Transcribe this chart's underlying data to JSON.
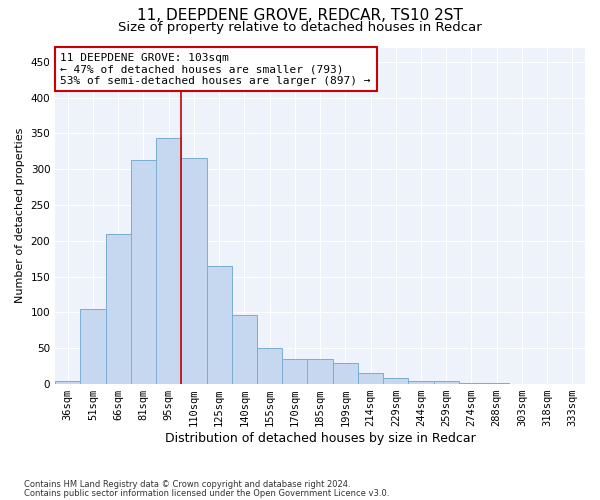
{
  "title1": "11, DEEPDENE GROVE, REDCAR, TS10 2ST",
  "title2": "Size of property relative to detached houses in Redcar",
  "xlabel": "Distribution of detached houses by size in Redcar",
  "ylabel": "Number of detached properties",
  "categories": [
    "36sqm",
    "51sqm",
    "66sqm",
    "81sqm",
    "95sqm",
    "110sqm",
    "125sqm",
    "140sqm",
    "155sqm",
    "170sqm",
    "185sqm",
    "199sqm",
    "214sqm",
    "229sqm",
    "244sqm",
    "259sqm",
    "274sqm",
    "288sqm",
    "303sqm",
    "318sqm",
    "333sqm"
  ],
  "values": [
    5,
    105,
    210,
    313,
    344,
    316,
    165,
    97,
    50,
    35,
    35,
    29,
    15,
    8,
    5,
    5,
    1,
    1,
    0,
    0,
    0
  ],
  "bar_color": "#c5d8f0",
  "bar_edge_color": "#7aadd4",
  "vline_x": 4.5,
  "vline_color": "#cc0000",
  "annotation_line1": "11 DEEPDENE GROVE: 103sqm",
  "annotation_line2": "← 47% of detached houses are smaller (793)",
  "annotation_line3": "53% of semi-detached houses are larger (897) →",
  "annotation_box_color": "#ffffff",
  "annotation_box_edge": "#cc0000",
  "ylim": [
    0,
    470
  ],
  "yticks": [
    0,
    50,
    100,
    150,
    200,
    250,
    300,
    350,
    400,
    450
  ],
  "footer1": "Contains HM Land Registry data © Crown copyright and database right 2024.",
  "footer2": "Contains public sector information licensed under the Open Government Licence v3.0.",
  "background_color": "#eef2fa",
  "title1_fontsize": 11,
  "title2_fontsize": 9.5,
  "tick_fontsize": 7.5,
  "ylabel_fontsize": 8,
  "xlabel_fontsize": 9,
  "footer_fontsize": 6,
  "annotation_fontsize": 8
}
